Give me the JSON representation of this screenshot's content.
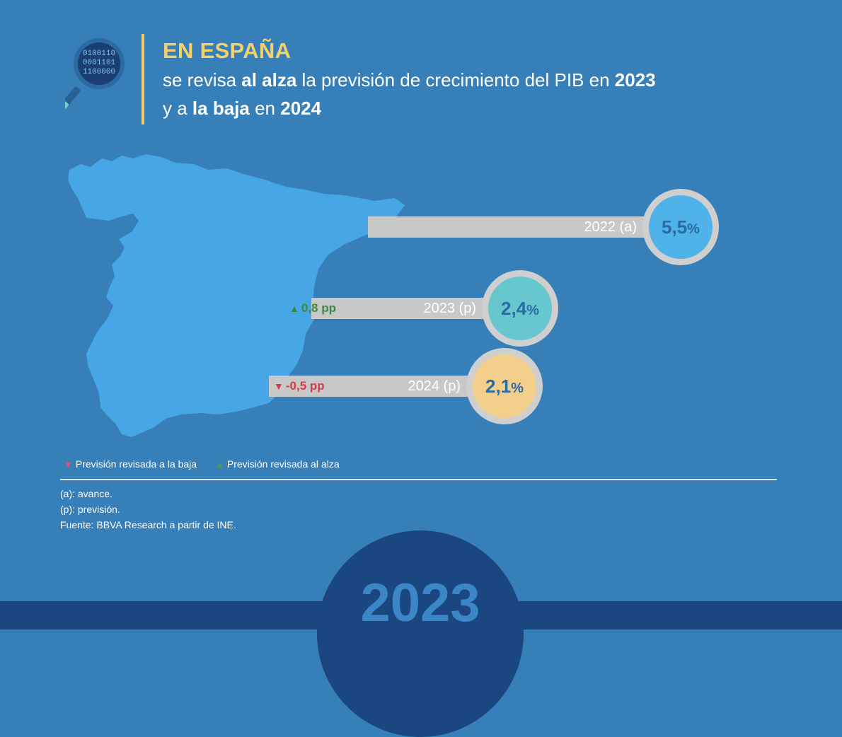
{
  "header": {
    "kicker": "EN ESPAÑA",
    "line1_a": "se revisa ",
    "line1_b": "al alza",
    "line1_c": " la previsión de crecimiento del PIB en ",
    "line1_d": "2023",
    "line2_a": "y a ",
    "line2_b": "la baja",
    "line2_c": " en ",
    "line2_d": "2024",
    "icon": "magnifier-binary-icon",
    "magnifier_rows": [
      "0100110",
      "0001101",
      "1100000"
    ]
  },
  "colors": {
    "background": "#367fb9",
    "accent_yellow": "#f5d06b",
    "map": "#47a6e6",
    "bar": "#c8c8c8",
    "up": "#3d8a3f",
    "down": "#d23a4a",
    "footer": "#1a477f"
  },
  "chart_data": {
    "type": "bar",
    "unit": "%",
    "categories": [
      "2022 (a)",
      "2023 (p)",
      "2024 (p)"
    ],
    "values": [
      5.5,
      2.4,
      2.1
    ],
    "value_labels": [
      "5,5",
      "2,4",
      "2,1"
    ],
    "bubble_colors": [
      "#4fb3ea",
      "#66c7cf",
      "#f2cf8a"
    ],
    "revisions": [
      {
        "category": "2022 (a)",
        "label": "",
        "direction": ""
      },
      {
        "category": "2023 (p)",
        "label": "0,8 pp",
        "direction": "up"
      },
      {
        "category": "2024 (p)",
        "label": "-0,5 pp",
        "direction": "down"
      }
    ]
  },
  "legend": {
    "down_label": "Previsión revisada a la baja",
    "up_label": "Previsión revisada al alza"
  },
  "notes": {
    "a": "(a): avance.",
    "p": "(p): previsión.",
    "source": "Fuente: BBVA Research a partir de INE."
  },
  "footer": {
    "year": "2023"
  }
}
